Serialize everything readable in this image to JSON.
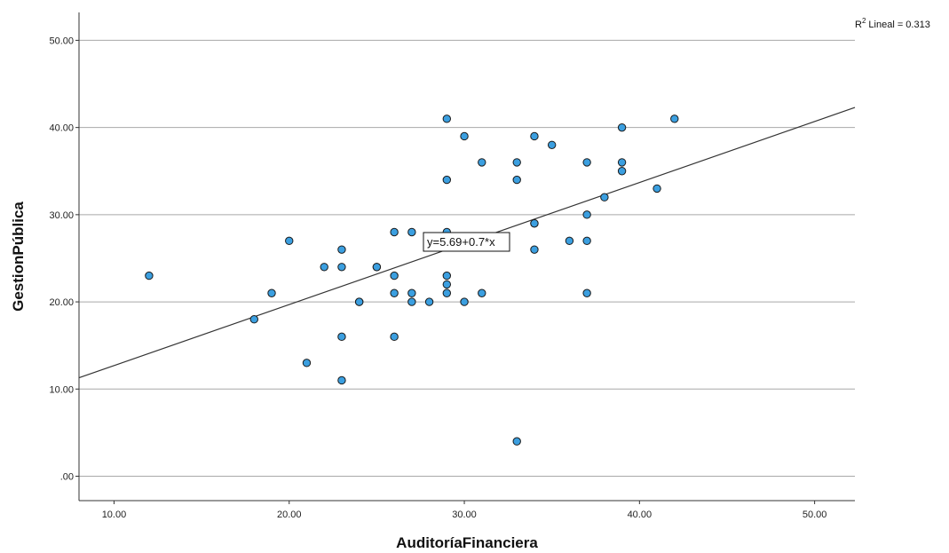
{
  "chart_data": {
    "type": "scatter",
    "xlabel": "AuditoríaFinanciera",
    "ylabel": "GestionPública",
    "xlim": [
      8,
      52.3
    ],
    "ylim": [
      -2.8,
      53.2
    ],
    "x_ticks": [
      "10.00",
      "20.00",
      "30.00",
      "40.00",
      "50.00"
    ],
    "x_tick_values": [
      10,
      20,
      30,
      40,
      50
    ],
    "y_ticks": [
      ".00",
      "10.00",
      "20.00",
      "30.00",
      "40.00",
      "50.00"
    ],
    "y_tick_values": [
      0,
      10,
      20,
      30,
      40,
      50
    ],
    "grid": "horizontal",
    "point_color": "#3b9fe0",
    "fit_line": {
      "intercept": 5.69,
      "slope": 0.7,
      "equation_label": "y=5.69+0.7*x",
      "r2_label": "Lineal = 0.313",
      "r2_prefix": "R",
      "r2_sup": "2"
    },
    "points": [
      [
        12,
        23
      ],
      [
        18,
        18
      ],
      [
        19,
        21
      ],
      [
        20,
        27
      ],
      [
        21,
        13
      ],
      [
        22,
        24
      ],
      [
        23,
        26
      ],
      [
        23,
        24
      ],
      [
        23,
        16
      ],
      [
        23,
        11
      ],
      [
        24,
        20
      ],
      [
        24,
        20
      ],
      [
        25,
        24
      ],
      [
        25,
        24
      ],
      [
        26,
        28
      ],
      [
        26,
        23
      ],
      [
        26,
        21
      ],
      [
        26,
        16
      ],
      [
        27,
        28
      ],
      [
        27,
        21
      ],
      [
        27,
        20
      ],
      [
        28,
        20
      ],
      [
        29,
        41
      ],
      [
        29,
        34
      ],
      [
        29,
        28
      ],
      [
        29,
        23
      ],
      [
        29,
        22
      ],
      [
        29,
        21
      ],
      [
        30,
        39
      ],
      [
        30,
        20
      ],
      [
        31,
        36
      ],
      [
        31,
        21
      ],
      [
        33,
        36
      ],
      [
        33,
        34
      ],
      [
        33,
        4
      ],
      [
        34,
        39
      ],
      [
        34,
        29
      ],
      [
        34,
        29
      ],
      [
        34,
        26
      ],
      [
        35,
        38
      ],
      [
        36,
        27
      ],
      [
        37,
        36
      ],
      [
        37,
        30
      ],
      [
        37,
        27
      ],
      [
        37,
        21
      ],
      [
        38,
        32
      ],
      [
        39,
        40
      ],
      [
        39,
        36
      ],
      [
        39,
        35
      ],
      [
        41,
        33
      ],
      [
        42,
        41
      ]
    ]
  }
}
